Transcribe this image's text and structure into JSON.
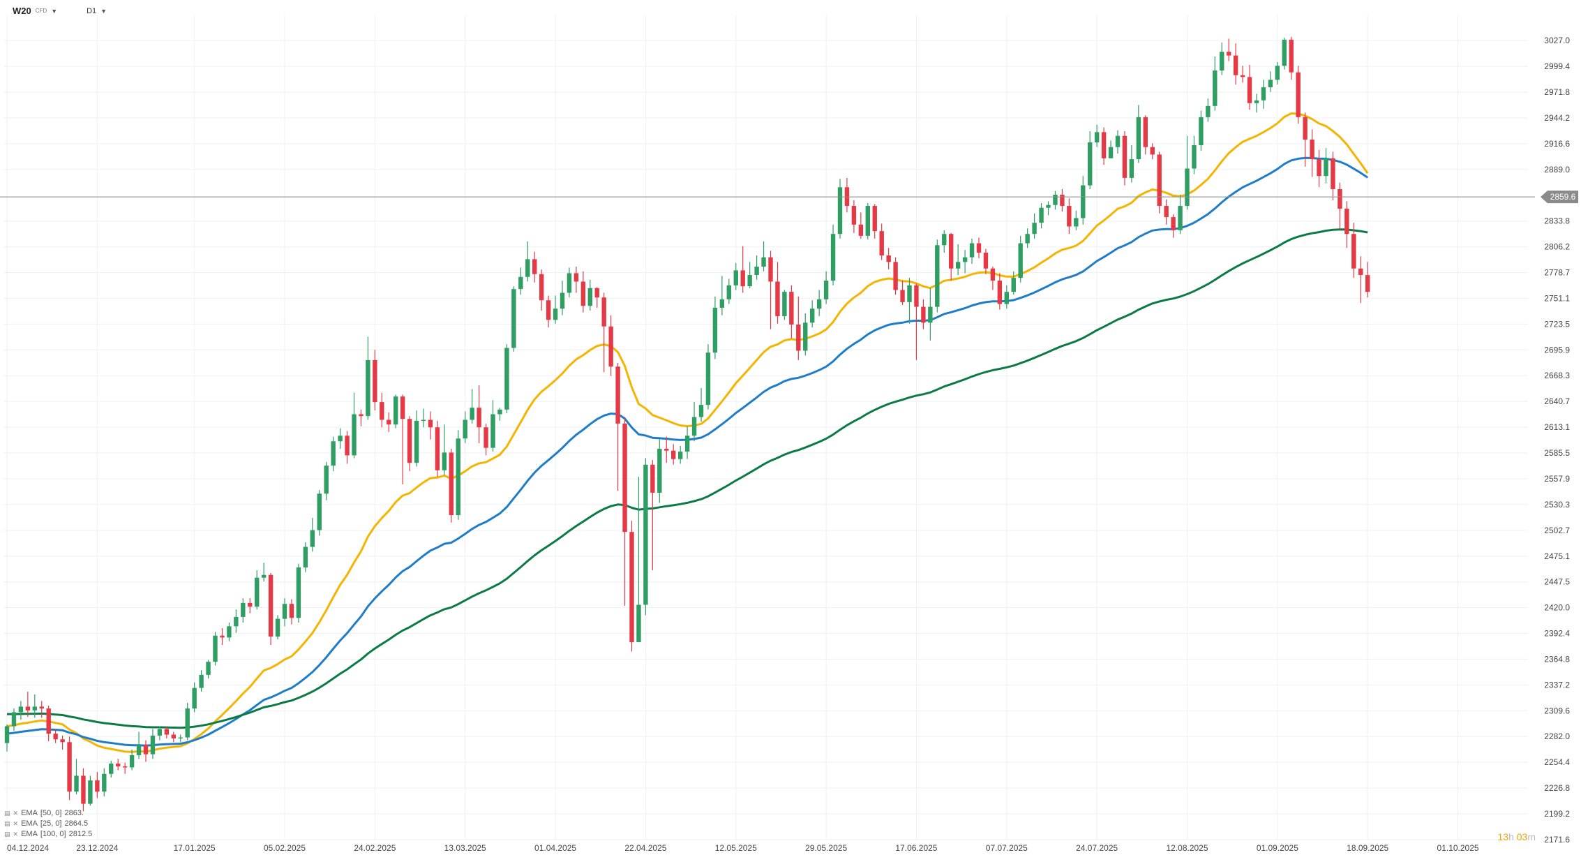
{
  "header": {
    "symbol": "W20",
    "symbol_sub": "CFD",
    "timeframe": "D1"
  },
  "countdown": {
    "hours": "13",
    "h_unit": "h",
    "minutes": "03",
    "m_unit": "m"
  },
  "legend": [
    {
      "label": "EMA",
      "params": "[50, 0]",
      "value": "2863."
    },
    {
      "label": "EMA",
      "params": "[25, 0]",
      "value": "2864.5"
    },
    {
      "label": "EMA",
      "params": "[100, 0]",
      "value": "2812.5"
    }
  ],
  "colors": {
    "up": "#2f9e63",
    "down": "#e63946",
    "ema25": "#f4b400",
    "ema50": "#1f7cc9",
    "ema100": "#0b7a45",
    "grid": "#eef0f2",
    "price_line": "#888888"
  },
  "chart_data": {
    "type": "candlestick",
    "title": "W20",
    "timeframe": "D1",
    "ylim": [
      2171.6,
      3054.0
    ],
    "price_line": {
      "value": 2859.6,
      "label": "2859.6"
    },
    "y_ticks": [
      "3027.0",
      "2999.4",
      "2971.8",
      "2944.2",
      "2916.6",
      "2889.0",
      "2833.8",
      "2806.2",
      "2778.7",
      "2751.1",
      "2723.5",
      "2695.9",
      "2668.3",
      "2640.7",
      "2613.1",
      "2585.5",
      "2557.9",
      "2530.3",
      "2502.7",
      "2475.1",
      "2447.5",
      "2420.0",
      "2392.4",
      "2364.8",
      "2337.2",
      "2309.6",
      "2282.0",
      "2254.4",
      "2226.8",
      "2199.2",
      "2171.6"
    ],
    "x_ticks": [
      {
        "label": "04.12.2024",
        "i": 0
      },
      {
        "label": "23.12.2024",
        "i": 13
      },
      {
        "label": "17.01.2025",
        "i": 27
      },
      {
        "label": "05.02.2025",
        "i": 40
      },
      {
        "label": "24.02.2025",
        "i": 53
      },
      {
        "label": "13.03.2025",
        "i": 66
      },
      {
        "label": "01.04.2025",
        "i": 79
      },
      {
        "label": "22.04.2025",
        "i": 92
      },
      {
        "label": "12.05.2025",
        "i": 105
      },
      {
        "label": "29.05.2025",
        "i": 118
      },
      {
        "label": "17.06.2025",
        "i": 131
      },
      {
        "label": "07.07.2025",
        "i": 144
      },
      {
        "label": "24.07.2025",
        "i": 157
      },
      {
        "label": "12.08.2025",
        "i": 170
      },
      {
        "label": "01.09.2025",
        "i": 183
      },
      {
        "label": "18.09.2025",
        "i": 196
      },
      {
        "label": "01.10.2025",
        "i": 209
      }
    ],
    "candles": [
      [
        2275,
        2293,
        2266,
        2295
      ],
      [
        2293,
        2308,
        2288,
        2312
      ],
      [
        2308,
        2314,
        2300,
        2320
      ],
      [
        2314,
        2310,
        2303,
        2330
      ],
      [
        2310,
        2314,
        2302,
        2327
      ],
      [
        2314,
        2312,
        2302,
        2320
      ],
      [
        2312,
        2285,
        2277,
        2315
      ],
      [
        2285,
        2279,
        2275,
        2290
      ],
      [
        2279,
        2276,
        2268,
        2283
      ],
      [
        2276,
        2223,
        2214,
        2282
      ],
      [
        2223,
        2240,
        2220,
        2258
      ],
      [
        2240,
        2210,
        2202,
        2248
      ],
      [
        2210,
        2235,
        2208,
        2240
      ],
      [
        2235,
        2223,
        2216,
        2244
      ],
      [
        2223,
        2242,
        2218,
        2248
      ],
      [
        2242,
        2253,
        2238,
        2256
      ],
      [
        2253,
        2250,
        2246,
        2258
      ],
      [
        2250,
        2249,
        2242,
        2254
      ],
      [
        2249,
        2262,
        2246,
        2268
      ],
      [
        2262,
        2273,
        2258,
        2287
      ],
      [
        2273,
        2263,
        2255,
        2278
      ],
      [
        2263,
        2283,
        2258,
        2290
      ],
      [
        2283,
        2290,
        2278,
        2293
      ],
      [
        2290,
        2284,
        2280,
        2293
      ],
      [
        2284,
        2280,
        2276,
        2287
      ],
      [
        2280,
        2281,
        2276,
        2284
      ],
      [
        2281,
        2312,
        2278,
        2318
      ],
      [
        2312,
        2334,
        2308,
        2340
      ],
      [
        2334,
        2348,
        2330,
        2353
      ],
      [
        2348,
        2362,
        2344,
        2364
      ],
      [
        2362,
        2390,
        2358,
        2394
      ],
      [
        2390,
        2388,
        2380,
        2398
      ],
      [
        2388,
        2400,
        2384,
        2404
      ],
      [
        2400,
        2410,
        2393,
        2418
      ],
      [
        2410,
        2425,
        2404,
        2430
      ],
      [
        2425,
        2421,
        2414,
        2430
      ],
      [
        2421,
        2452,
        2418,
        2460
      ],
      [
        2452,
        2455,
        2448,
        2468
      ],
      [
        2455,
        2389,
        2380,
        2457
      ],
      [
        2389,
        2408,
        2386,
        2412
      ],
      [
        2408,
        2424,
        2400,
        2430
      ],
      [
        2424,
        2409,
        2402,
        2429
      ],
      [
        2409,
        2463,
        2404,
        2467
      ],
      [
        2463,
        2485,
        2458,
        2490
      ],
      [
        2485,
        2503,
        2480,
        2516
      ],
      [
        2503,
        2542,
        2497,
        2546
      ],
      [
        2542,
        2572,
        2535,
        2576
      ],
      [
        2572,
        2598,
        2566,
        2603
      ],
      [
        2598,
        2604,
        2590,
        2612
      ],
      [
        2604,
        2583,
        2574,
        2609
      ],
      [
        2583,
        2627,
        2580,
        2650
      ],
      [
        2627,
        2625,
        2614,
        2632
      ],
      [
        2625,
        2685,
        2621,
        2710
      ],
      [
        2685,
        2640,
        2631,
        2696
      ],
      [
        2640,
        2621,
        2613,
        2650
      ],
      [
        2621,
        2616,
        2608,
        2629
      ],
      [
        2616,
        2646,
        2612,
        2648
      ],
      [
        2646,
        2622,
        2552,
        2648
      ],
      [
        2622,
        2575,
        2566,
        2625
      ],
      [
        2575,
        2620,
        2571,
        2631
      ],
      [
        2620,
        2621,
        2613,
        2633
      ],
      [
        2621,
        2613,
        2600,
        2630
      ],
      [
        2613,
        2567,
        2560,
        2620
      ],
      [
        2567,
        2586,
        2562,
        2616
      ],
      [
        2586,
        2519,
        2511,
        2590
      ],
      [
        2519,
        2601,
        2514,
        2610
      ],
      [
        2601,
        2621,
        2596,
        2630
      ],
      [
        2621,
        2634,
        2617,
        2654
      ],
      [
        2634,
        2613,
        2596,
        2658
      ],
      [
        2613,
        2591,
        2583,
        2617
      ],
      [
        2591,
        2627,
        2587,
        2642
      ],
      [
        2627,
        2632,
        2620,
        2634
      ],
      [
        2632,
        2698,
        2628,
        2702
      ],
      [
        2698,
        2761,
        2694,
        2764
      ],
      [
        2761,
        2774,
        2755,
        2784
      ],
      [
        2774,
        2793,
        2769,
        2812
      ],
      [
        2793,
        2777,
        2768,
        2801
      ],
      [
        2777,
        2749,
        2738,
        2782
      ],
      [
        2749,
        2728,
        2720,
        2754
      ],
      [
        2728,
        2740,
        2724,
        2754
      ],
      [
        2740,
        2757,
        2733,
        2770
      ],
      [
        2757,
        2778,
        2752,
        2784
      ],
      [
        2778,
        2769,
        2757,
        2785
      ],
      [
        2769,
        2743,
        2736,
        2780
      ],
      [
        2743,
        2762,
        2738,
        2771
      ],
      [
        2762,
        2752,
        2741,
        2763
      ],
      [
        2752,
        2721,
        2672,
        2757
      ],
      [
        2721,
        2678,
        2668,
        2733
      ],
      [
        2678,
        2617,
        2545,
        2682
      ],
      [
        2617,
        2501,
        2422,
        2624
      ],
      [
        2501,
        2383,
        2373,
        2513
      ],
      [
        2383,
        2423,
        2383,
        2560
      ],
      [
        2423,
        2573,
        2412,
        2580
      ],
      [
        2573,
        2543,
        2460,
        2578
      ],
      [
        2543,
        2590,
        2532,
        2600
      ],
      [
        2590,
        2588,
        2575,
        2603
      ],
      [
        2588,
        2579,
        2573,
        2595
      ],
      [
        2579,
        2587,
        2574,
        2593
      ],
      [
        2587,
        2604,
        2579,
        2614
      ],
      [
        2604,
        2624,
        2598,
        2640
      ],
      [
        2624,
        2637,
        2619,
        2655
      ],
      [
        2637,
        2693,
        2632,
        2702
      ],
      [
        2693,
        2741,
        2686,
        2753
      ],
      [
        2741,
        2750,
        2733,
        2775
      ],
      [
        2750,
        2765,
        2745,
        2772
      ],
      [
        2765,
        2781,
        2760,
        2789
      ],
      [
        2781,
        2764,
        2757,
        2807
      ],
      [
        2764,
        2776,
        2762,
        2790
      ],
      [
        2776,
        2785,
        2771,
        2797
      ],
      [
        2785,
        2795,
        2780,
        2812
      ],
      [
        2795,
        2769,
        2718,
        2802
      ],
      [
        2769,
        2732,
        2724,
        2790
      ],
      [
        2732,
        2758,
        2728,
        2760
      ],
      [
        2758,
        2723,
        2708,
        2765
      ],
      [
        2723,
        2695,
        2685,
        2753
      ],
      [
        2695,
        2725,
        2690,
        2735
      ],
      [
        2725,
        2740,
        2720,
        2749
      ],
      [
        2740,
        2750,
        2732,
        2760
      ],
      [
        2750,
        2770,
        2745,
        2780
      ],
      [
        2770,
        2820,
        2765,
        2830
      ],
      [
        2820,
        2870,
        2815,
        2879
      ],
      [
        2870,
        2850,
        2843,
        2880
      ],
      [
        2850,
        2830,
        2821,
        2856
      ],
      [
        2830,
        2818,
        2815,
        2843
      ],
      [
        2818,
        2850,
        2814,
        2853
      ],
      [
        2850,
        2823,
        2815,
        2852
      ],
      [
        2823,
        2797,
        2792,
        2831
      ],
      [
        2797,
        2790,
        2782,
        2805
      ],
      [
        2790,
        2760,
        2755,
        2795
      ],
      [
        2760,
        2747,
        2744,
        2770
      ],
      [
        2747,
        2765,
        2724,
        2773
      ],
      [
        2765,
        2742,
        2685,
        2767
      ],
      [
        2742,
        2725,
        2718,
        2750
      ],
      [
        2725,
        2742,
        2706,
        2762
      ],
      [
        2742,
        2808,
        2736,
        2814
      ],
      [
        2808,
        2820,
        2800,
        2824
      ],
      [
        2820,
        2783,
        2770,
        2821
      ],
      [
        2783,
        2790,
        2776,
        2809
      ],
      [
        2790,
        2795,
        2778,
        2803
      ],
      [
        2795,
        2810,
        2788,
        2815
      ],
      [
        2810,
        2800,
        2794,
        2816
      ],
      [
        2800,
        2783,
        2777,
        2804
      ],
      [
        2783,
        2770,
        2760,
        2785
      ],
      [
        2770,
        2745,
        2739,
        2778
      ],
      [
        2745,
        2758,
        2740,
        2765
      ],
      [
        2758,
        2773,
        2755,
        2780
      ],
      [
        2773,
        2810,
        2768,
        2818
      ],
      [
        2810,
        2820,
        2805,
        2826
      ],
      [
        2820,
        2832,
        2815,
        2842
      ],
      [
        2832,
        2848,
        2826,
        2853
      ],
      [
        2848,
        2851,
        2840,
        2855
      ],
      [
        2851,
        2862,
        2846,
        2866
      ],
      [
        2862,
        2850,
        2844,
        2868
      ],
      [
        2850,
        2828,
        2820,
        2858
      ],
      [
        2828,
        2837,
        2824,
        2845
      ],
      [
        2837,
        2872,
        2830,
        2882
      ],
      [
        2872,
        2918,
        2868,
        2930
      ],
      [
        2918,
        2929,
        2913,
        2937
      ],
      [
        2929,
        2901,
        2894,
        2934
      ],
      [
        2901,
        2913,
        2906,
        2920
      ],
      [
        2913,
        2925,
        2906,
        2931
      ],
      [
        2925,
        2880,
        2872,
        2930
      ],
      [
        2880,
        2900,
        2875,
        2915
      ],
      [
        2900,
        2945,
        2896,
        2958
      ],
      [
        2945,
        2913,
        2905,
        2947
      ],
      [
        2913,
        2905,
        2900,
        2917
      ],
      [
        2905,
        2850,
        2842,
        2908
      ],
      [
        2850,
        2838,
        2830,
        2857
      ],
      [
        2838,
        2824,
        2816,
        2841
      ],
      [
        2824,
        2850,
        2820,
        2862
      ],
      [
        2850,
        2890,
        2846,
        2925
      ],
      [
        2890,
        2915,
        2884,
        2925
      ],
      [
        2915,
        2945,
        2909,
        2952
      ],
      [
        2945,
        2957,
        2940,
        2965
      ],
      [
        2957,
        2995,
        2952,
        3010
      ],
      [
        2995,
        3015,
        2990,
        3025
      ],
      [
        3015,
        3011,
        3005,
        3029
      ],
      [
        3011,
        2990,
        2980,
        3024
      ],
      [
        2990,
        2988,
        2982,
        3000
      ],
      [
        2988,
        2960,
        2953,
        3001
      ],
      [
        2960,
        2963,
        2950,
        2970
      ],
      [
        2963,
        2977,
        2954,
        2985
      ],
      [
        2977,
        2985,
        2972,
        2994
      ],
      [
        2985,
        3000,
        2980,
        3004
      ],
      [
        3000,
        3028,
        2996,
        3030
      ],
      [
        3028,
        2993,
        2985,
        3031
      ],
      [
        2993,
        2945,
        2938,
        3000
      ],
      [
        2945,
        2921,
        2892,
        2950
      ],
      [
        2921,
        2900,
        2881,
        2932
      ],
      [
        2900,
        2882,
        2870,
        2910
      ],
      [
        2882,
        2901,
        2874,
        2912
      ],
      [
        2901,
        2868,
        2856,
        2908
      ],
      [
        2868,
        2847,
        2825,
        2875
      ],
      [
        2847,
        2820,
        2805,
        2855
      ],
      [
        2820,
        2783,
        2773,
        2832
      ],
      [
        2783,
        2776,
        2746,
        2796
      ],
      [
        2776,
        2758,
        2752,
        2790
      ]
    ],
    "ema": [
      {
        "name": "EMA [25, 0]",
        "period": 25,
        "color": "#f4b400"
      },
      {
        "name": "EMA [50, 0]",
        "period": 50,
        "color": "#1f7cc9"
      },
      {
        "name": "EMA [100, 0]",
        "period": 100,
        "color": "#0b7a45"
      }
    ],
    "grid": true,
    "legend_position": "bottom-left"
  }
}
